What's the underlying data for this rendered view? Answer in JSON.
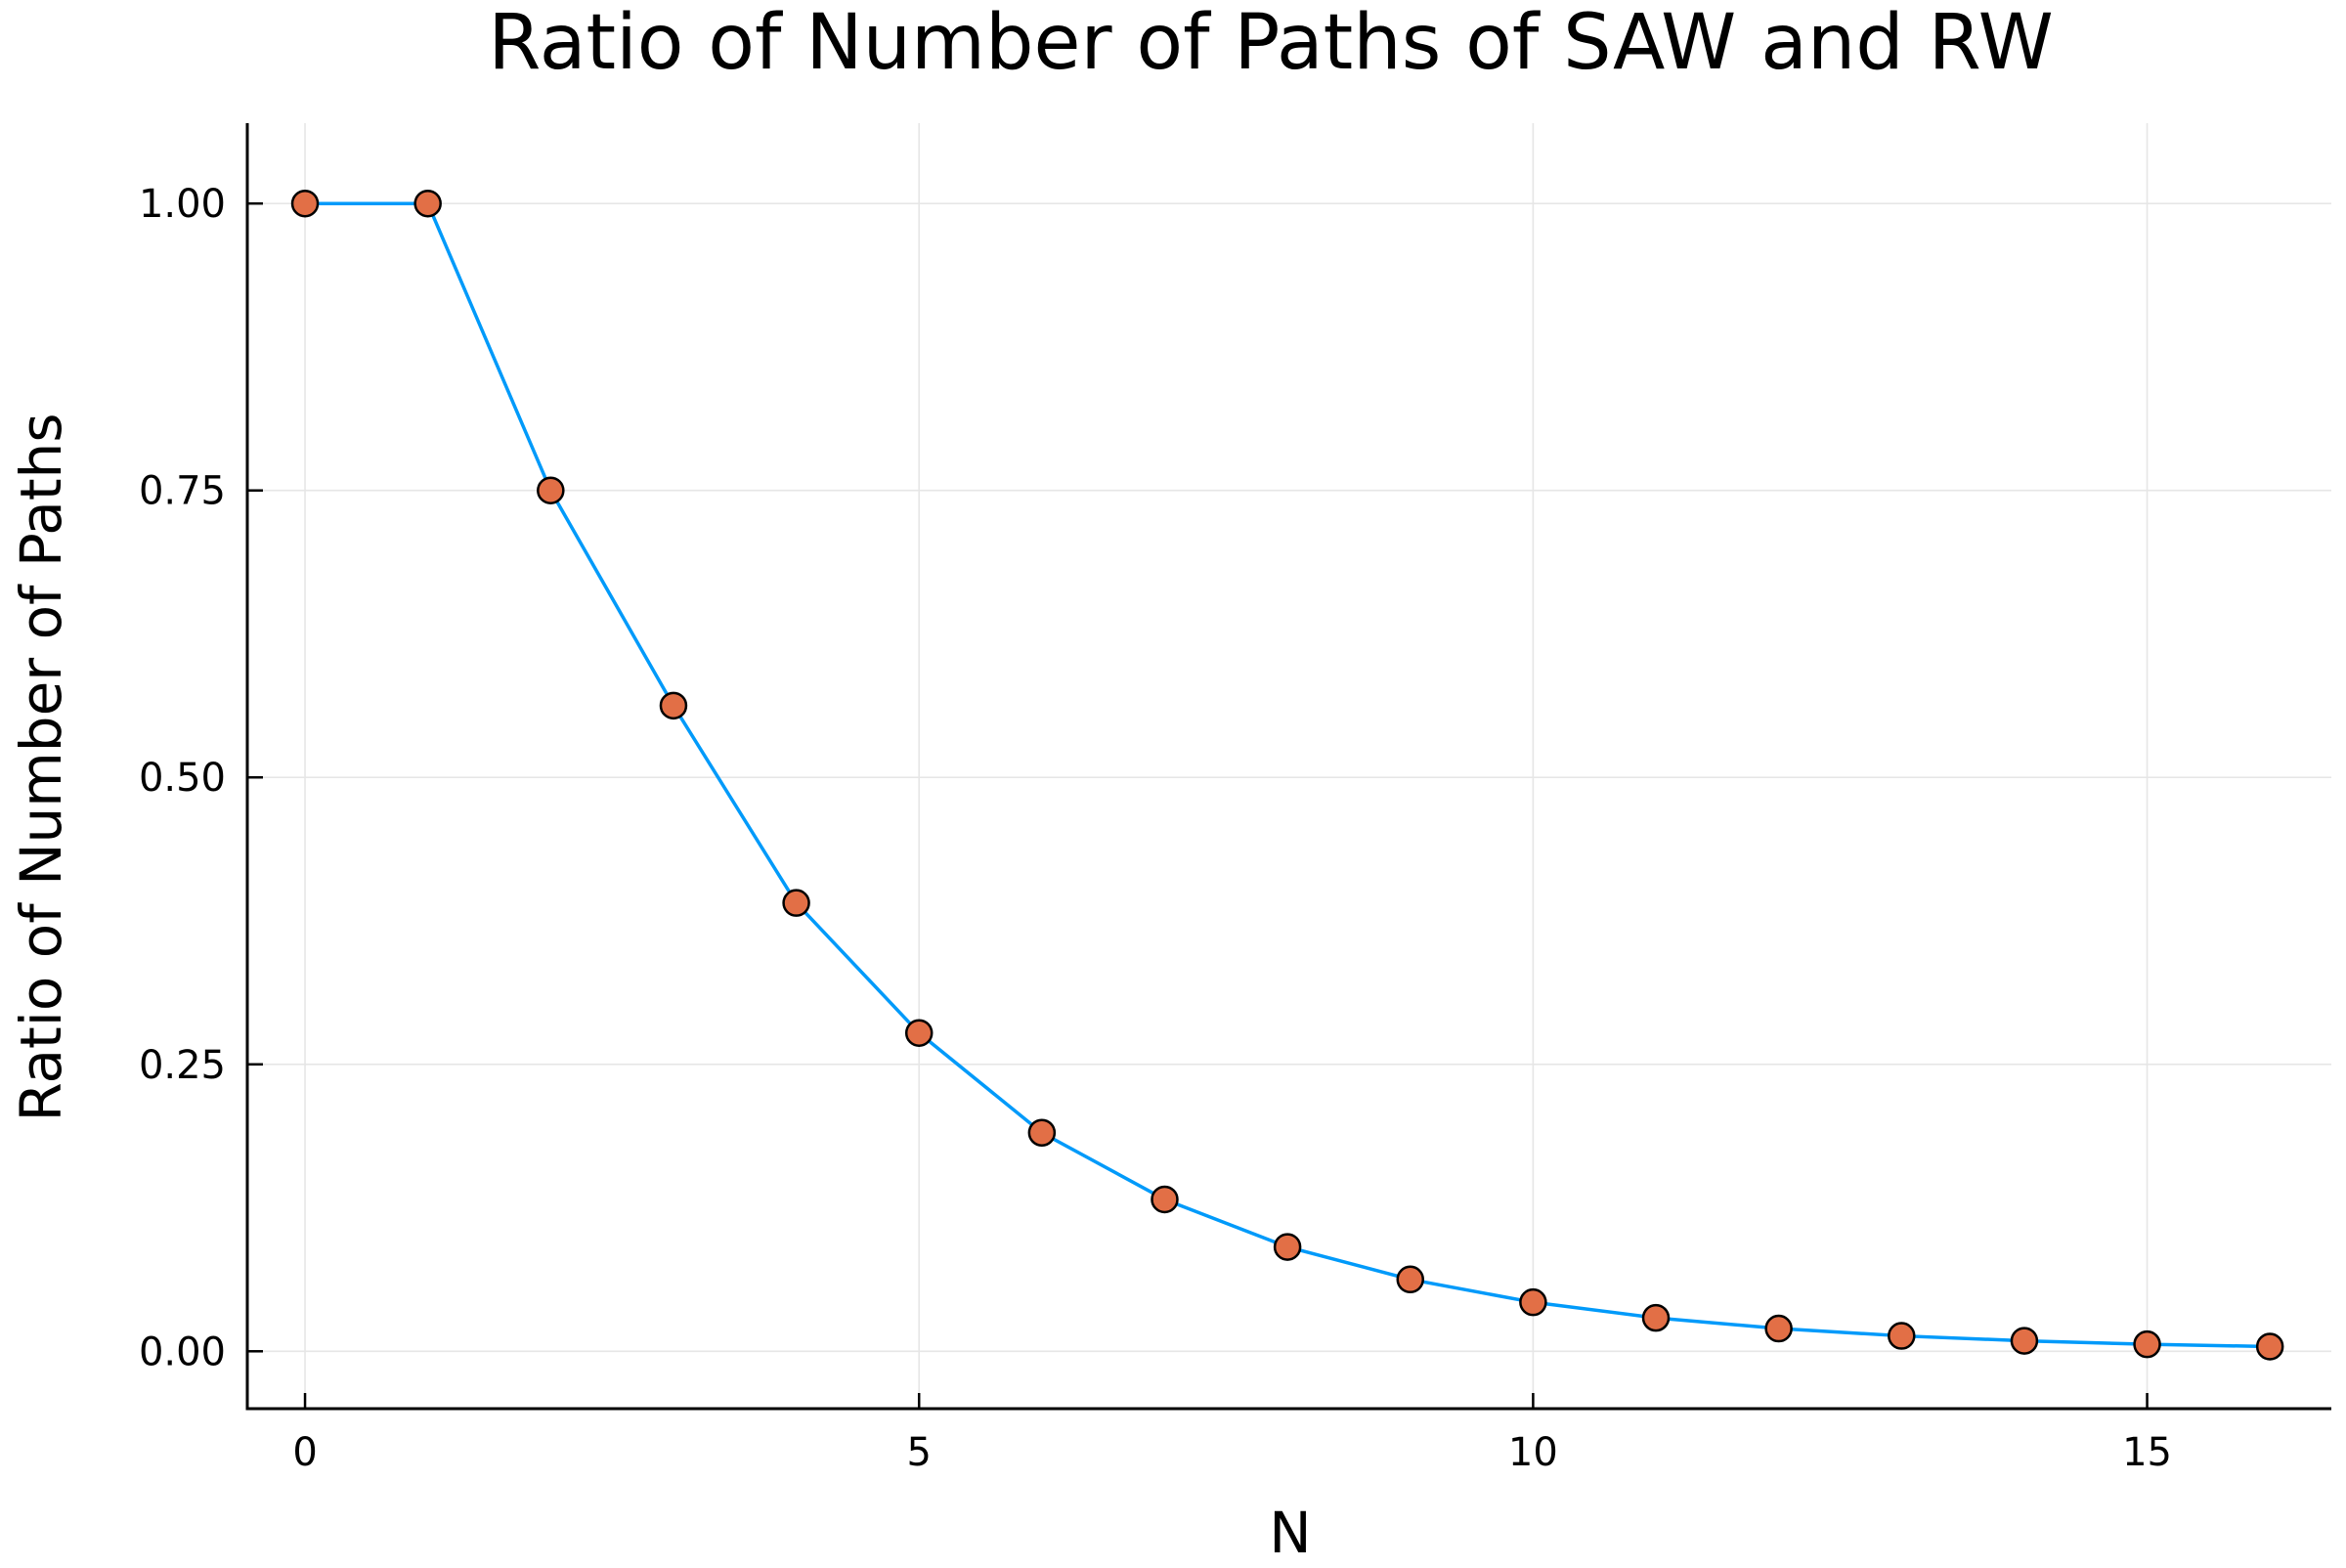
{
  "chart_data": {
    "type": "line",
    "title": "Ratio of Number of Paths of SAW and RW",
    "xlabel": "N",
    "ylabel": "Ratio of Number of Paths",
    "xlim": [
      -0.47,
      16.5
    ],
    "ylim": [
      -0.05,
      1.07
    ],
    "xticks": [
      0,
      5,
      10,
      15
    ],
    "xtick_labels": [
      "0",
      "5",
      "10",
      "15"
    ],
    "yticks": [
      0.0,
      0.25,
      0.5,
      0.75,
      1.0
    ],
    "ytick_labels": [
      "0.00",
      "0.25",
      "0.50",
      "0.75",
      "1.00"
    ],
    "grid": true,
    "legend": false,
    "x": [
      0,
      1,
      2,
      3,
      4,
      5,
      6,
      7,
      8,
      9,
      10,
      11,
      12,
      13,
      14,
      15,
      16
    ],
    "series": [
      {
        "values": [
          1.0,
          1.0,
          0.75,
          0.5625,
          0.390625,
          0.2773,
          0.1904,
          0.1323,
          0.0909,
          0.0626,
          0.0427,
          0.0291,
          0.0198,
          0.0134,
          0.0091,
          0.0061,
          0.0041
        ],
        "line_color": "#009AFA",
        "marker_color": "#E26F46",
        "marker_edge_color": "#000000"
      }
    ]
  }
}
